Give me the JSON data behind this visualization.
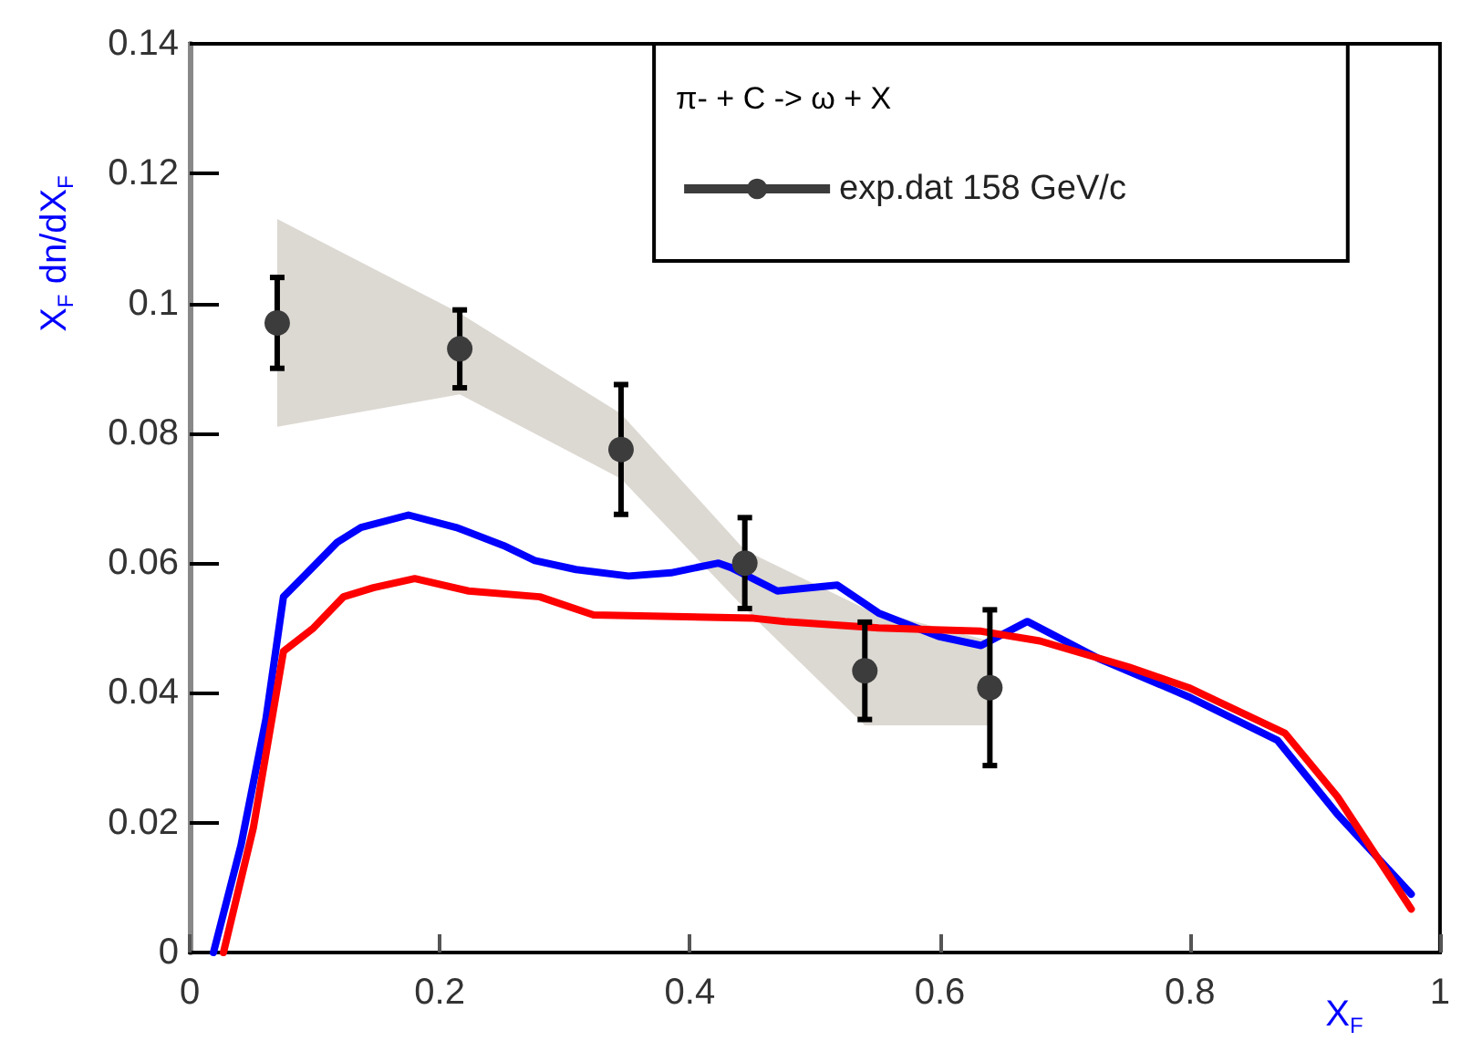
{
  "chart_data": {
    "type": "line",
    "xlabel": "X$_{F}$",
    "ylabel": "X$_{F}$ dn/dX$_{F}$",
    "legend_title": "π- + C -> ω + X",
    "xlim": [
      0,
      1
    ],
    "xticks": [
      0,
      0.2,
      0.4,
      0.6,
      0.8,
      1
    ],
    "ylim": [
      0,
      0.14
    ],
    "yticks": [
      0,
      0.02,
      0.04,
      0.06,
      0.08,
      0.1,
      0.12,
      0.14
    ],
    "grid": false,
    "legend": "top right",
    "series": [
      {
        "name": "exp.dat 158 GeV/c",
        "type": "scatter",
        "marker": "circle",
        "color": "#3c3c3c",
        "x": [
          0.07,
          0.216,
          0.345,
          0.444,
          0.54,
          0.64
        ],
        "values": [
          0.097,
          0.093,
          0.0775,
          0.06,
          0.0434,
          0.0408
        ],
        "errors": [
          0.007,
          0.006,
          0.01,
          0.007,
          0.0075,
          0.012
        ],
        "lower": [
          0.081,
          0.086,
          0.073,
          0.053,
          0.035,
          0.035
        ],
        "upper": [
          0.113,
          0.0985,
          0.083,
          0.062,
          0.053,
          0.048
        ]
      },
      {
        "marker": "none",
        "color": "#0000ff",
        "x": [
          0.019,
          0.041,
          0.061,
          0.075,
          0.094,
          0.118,
          0.137,
          0.175,
          0.213,
          0.251,
          0.276,
          0.309,
          0.351,
          0.385,
          0.423,
          0.433,
          0.47,
          0.518,
          0.551,
          0.599,
          0.633,
          0.67,
          0.727,
          0.799,
          0.87,
          0.918,
          0.977
        ],
        "values": [
          0,
          0.0165,
          0.036,
          0.0548,
          0.0585,
          0.0632,
          0.0655,
          0.0674,
          0.0655,
          0.0627,
          0.0604,
          0.059,
          0.058,
          0.0585,
          0.06,
          0.0593,
          0.0557,
          0.0566,
          0.0523,
          0.0487,
          0.0473,
          0.051,
          0.0453,
          0.0394,
          0.0327,
          0.0213,
          0.009
        ]
      },
      {
        "marker": "none",
        "color": "#ff0000",
        "x": [
          0.027,
          0.051,
          0.075,
          0.099,
          0.123,
          0.147,
          0.18,
          0.223,
          0.28,
          0.323,
          0.451,
          0.476,
          0.551,
          0.633,
          0.68,
          0.751,
          0.799,
          0.876,
          0.918,
          0.977
        ],
        "values": [
          0,
          0.0193,
          0.0464,
          0.05,
          0.0548,
          0.0562,
          0.0576,
          0.0557,
          0.0548,
          0.052,
          0.0515,
          0.051,
          0.05,
          0.0495,
          0.048,
          0.044,
          0.0408,
          0.0338,
          0.024,
          0.0067
        ]
      }
    ]
  }
}
